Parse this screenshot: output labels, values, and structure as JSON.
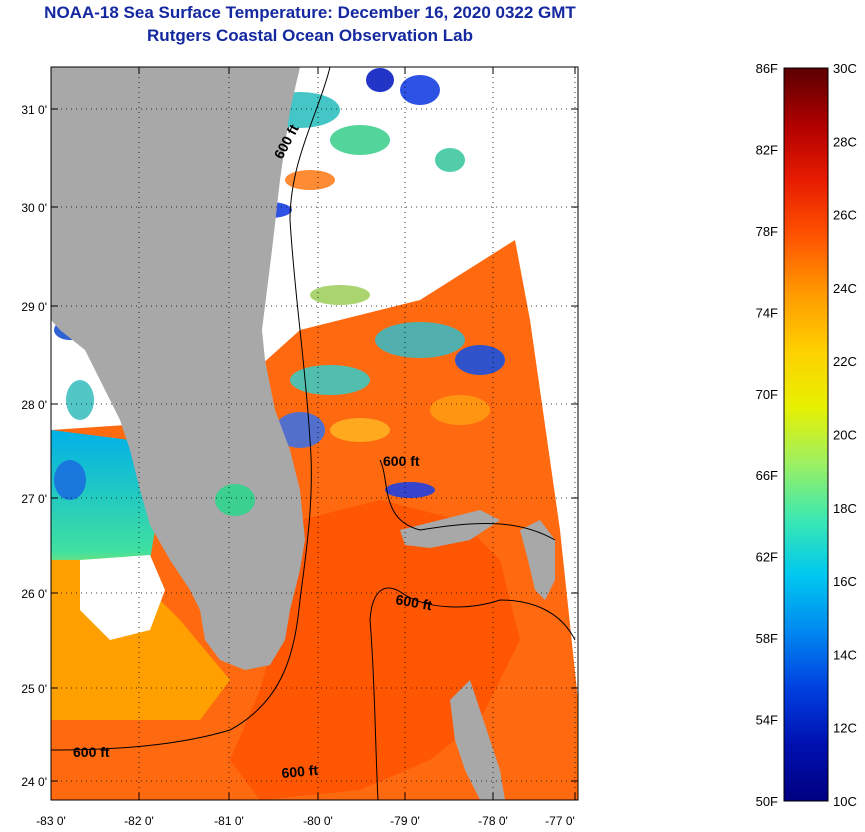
{
  "header": {
    "title": "NOAA-18 Sea Surface Temperature:  December 16, 2020 0322 GMT",
    "subtitle": "Rutgers Coastal Ocean Observation Lab"
  },
  "map": {
    "lat_labels": [
      "31 0'",
      "30 0'",
      "29 0'",
      "28 0'",
      "27 0'",
      "26 0'",
      "25 0'",
      "24 0'"
    ],
    "lon_labels": [
      "-83 0'",
      "-82 0'",
      "-81 0'",
      "-80 0'",
      "-79 0'",
      "-78 0'",
      "-77 0'"
    ],
    "contour_label": "600 ft",
    "land_color": "#a8a8a8",
    "cloud_color": "#ffffff"
  },
  "colorbar": {
    "fahrenheit": [
      "86F",
      "82F",
      "78F",
      "74F",
      "70F",
      "66F",
      "62F",
      "58F",
      "54F",
      "50F"
    ],
    "celsius": [
      "30C",
      "28C",
      "26C",
      "24C",
      "22C",
      "20C",
      "18C",
      "16C",
      "14C",
      "12C",
      "10C"
    ],
    "colors": [
      "#5a0000",
      "#b00000",
      "#e81c00",
      "#ff5500",
      "#ff9a00",
      "#ffd000",
      "#e8f000",
      "#9ef060",
      "#3ce8b0",
      "#00c8f0",
      "#0088f0",
      "#0040e0",
      "#0010b0",
      "#000080"
    ]
  }
}
